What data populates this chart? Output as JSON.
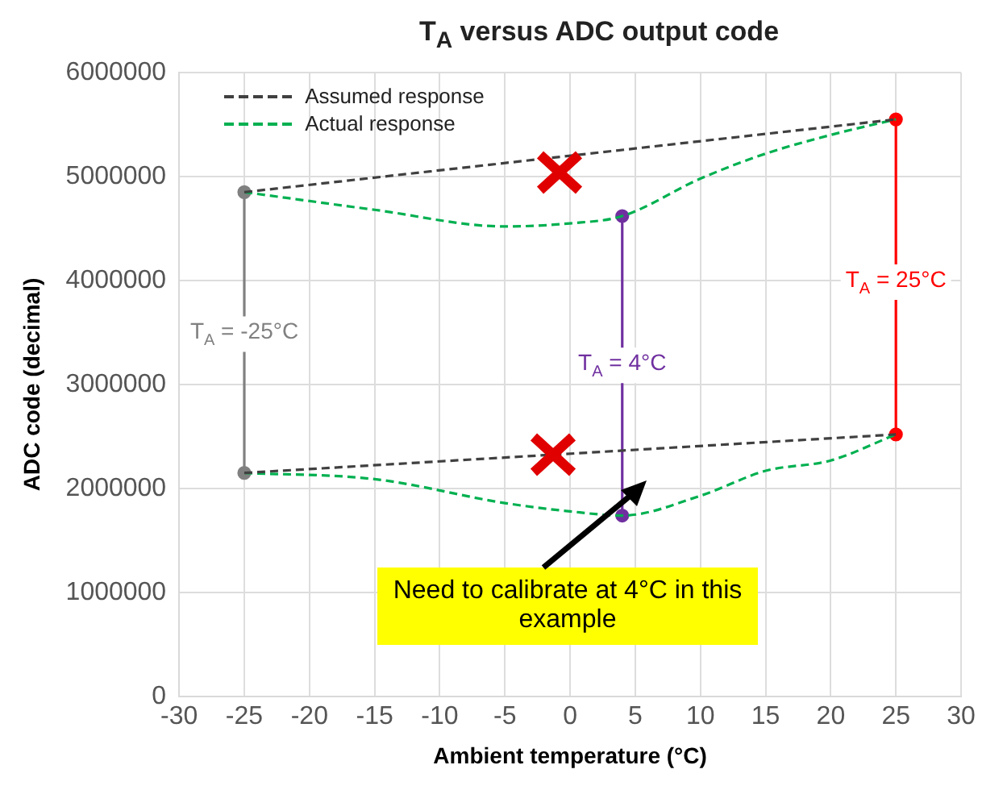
{
  "chart_data": {
    "type": "line",
    "title": "T$_{A}$ versus ADC output code",
    "xlabel": "Ambient temperature (°C)",
    "ylabel": "ADC code (decimal)",
    "xlim": [
      -30,
      30
    ],
    "xticks": [
      -30,
      -25,
      -20,
      -15,
      -10,
      -5,
      0,
      5,
      10,
      15,
      20,
      25,
      30
    ],
    "ylim": [
      0,
      6000000
    ],
    "yticks": [
      0,
      1000000,
      2000000,
      3000000,
      4000000,
      5000000,
      6000000
    ],
    "grid": true,
    "legend": "top left",
    "series": [
      {
        "name": "Assumed response",
        "color": "#404040",
        "line_style": "dashed",
        "marker": "none",
        "x": [
          -25,
          25
        ],
        "values": [
          4850000,
          5550000
        ]
      },
      {
        "color": "#404040",
        "line_style": "dashed",
        "marker": "none",
        "x": [
          -25,
          25
        ],
        "values": [
          2150000,
          2520000
        ]
      },
      {
        "name": "Actual response",
        "color": "#00b050",
        "line_style": "dashed",
        "marker": "none",
        "x": [
          -25,
          -15,
          -5,
          0,
          4,
          10,
          15,
          20,
          25
        ],
        "values": [
          4850000,
          4680000,
          4520000,
          4550000,
          4620000,
          4980000,
          5220000,
          5400000,
          5550000
        ]
      },
      {
        "color": "#00b050",
        "line_style": "dashed",
        "marker": "none",
        "x": [
          -25,
          -15,
          -5,
          0,
          4,
          10,
          15,
          20,
          25
        ],
        "values": [
          2150000,
          2090000,
          1860000,
          1780000,
          1740000,
          1930000,
          2170000,
          2270000,
          2520000
        ]
      },
      {
        "color": "#808080",
        "line_style": "solid",
        "marker": "circle",
        "x": [
          -25,
          -25
        ],
        "values": [
          2150000,
          4850000
        ]
      },
      {
        "color": "#7030a0",
        "line_style": "solid",
        "marker": "circle",
        "x": [
          4,
          4
        ],
        "values": [
          1740000,
          4620000
        ]
      },
      {
        "color": "#ff0000",
        "line_style": "solid",
        "marker": "circle",
        "x": [
          25,
          25
        ],
        "values": [
          2520000,
          5550000
        ]
      }
    ],
    "annotations": [
      {
        "text": "T$_{A}$ = -25°C",
        "x": -25,
        "y": 3500000
      },
      {
        "text": "T$_{A}$ = 4°C",
        "x": 4,
        "y": 3200000
      },
      {
        "text": "T$_{A}$ = 25°C",
        "x": 25,
        "y": 4000000
      },
      "Need to calibrate at 4°C in this example"
    ]
  }
}
